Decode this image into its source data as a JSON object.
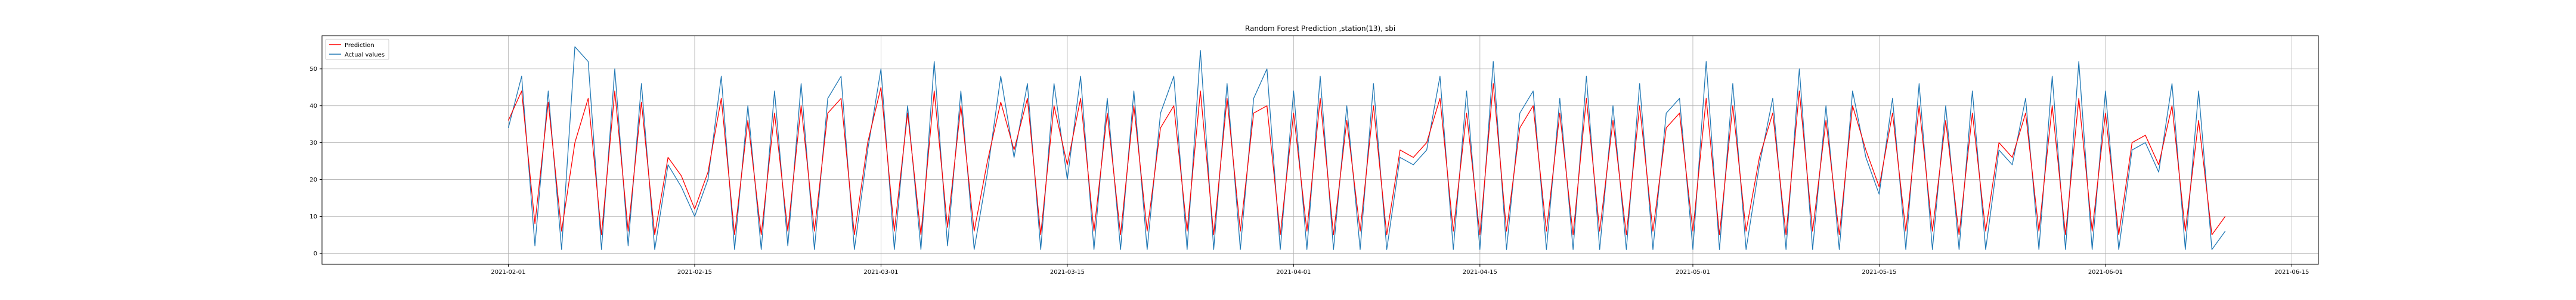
{
  "chart_data": {
    "type": "line",
    "title": "Random Forest Prediction ,station(13), sbi",
    "xlabel": "",
    "ylabel": "",
    "x_range": [
      "2021-01-18",
      "2021-06-17"
    ],
    "ylim": [
      -3,
      59
    ],
    "x_ticks": [
      "2021-02-01",
      "2021-02-15",
      "2021-03-01",
      "2021-03-15",
      "2021-04-01",
      "2021-04-15",
      "2021-05-01",
      "2021-05-15",
      "2021-06-01",
      "2021-06-15"
    ],
    "y_ticks": [
      0,
      10,
      20,
      30,
      40,
      50
    ],
    "grid": true,
    "legend": "top-left",
    "series": [
      {
        "name": "Prediction",
        "color": "#ff0000",
        "x": [
          "2021-02-01",
          "2021-02-02",
          "2021-02-03",
          "2021-02-04",
          "2021-02-05",
          "2021-02-06",
          "2021-02-07",
          "2021-02-08",
          "2021-02-09",
          "2021-02-10",
          "2021-02-11",
          "2021-02-12",
          "2021-02-13",
          "2021-02-14",
          "2021-02-15",
          "2021-02-16",
          "2021-02-17",
          "2021-02-18",
          "2021-02-19",
          "2021-02-20",
          "2021-02-21",
          "2021-02-22",
          "2021-02-23",
          "2021-02-24",
          "2021-02-25",
          "2021-02-26",
          "2021-02-27",
          "2021-02-28",
          "2021-03-01",
          "2021-03-02",
          "2021-03-03",
          "2021-03-04",
          "2021-03-05",
          "2021-03-06",
          "2021-03-07",
          "2021-03-08",
          "2021-03-09",
          "2021-03-10",
          "2021-03-11",
          "2021-03-12",
          "2021-03-13",
          "2021-03-14",
          "2021-03-15",
          "2021-03-16",
          "2021-03-17",
          "2021-03-18",
          "2021-03-19",
          "2021-03-20",
          "2021-03-21",
          "2021-03-22",
          "2021-03-23",
          "2021-03-24",
          "2021-03-25",
          "2021-03-26",
          "2021-03-27",
          "2021-03-28",
          "2021-03-29",
          "2021-03-30",
          "2021-03-31",
          "2021-04-01",
          "2021-04-02",
          "2021-04-03",
          "2021-04-04",
          "2021-04-05",
          "2021-04-06",
          "2021-04-07",
          "2021-04-08",
          "2021-04-09",
          "2021-04-10",
          "2021-04-11",
          "2021-04-12",
          "2021-04-13",
          "2021-04-14",
          "2021-04-15",
          "2021-04-16",
          "2021-04-17",
          "2021-04-18",
          "2021-04-19",
          "2021-04-20",
          "2021-04-21",
          "2021-04-22",
          "2021-04-23",
          "2021-04-24",
          "2021-04-25",
          "2021-04-26",
          "2021-04-27",
          "2021-04-28",
          "2021-04-29",
          "2021-04-30",
          "2021-05-01",
          "2021-05-02",
          "2021-05-03",
          "2021-05-04",
          "2021-05-05",
          "2021-05-06",
          "2021-05-07",
          "2021-05-08",
          "2021-05-09",
          "2021-05-10",
          "2021-05-11",
          "2021-05-12",
          "2021-05-13",
          "2021-05-14",
          "2021-05-15",
          "2021-05-16",
          "2021-05-17",
          "2021-05-18",
          "2021-05-19",
          "2021-05-20",
          "2021-05-21",
          "2021-05-22",
          "2021-05-23",
          "2021-05-24",
          "2021-05-25",
          "2021-05-26",
          "2021-05-27",
          "2021-05-28",
          "2021-05-29",
          "2021-05-30",
          "2021-05-31",
          "2021-06-01",
          "2021-06-02",
          "2021-06-03",
          "2021-06-04",
          "2021-06-05",
          "2021-06-06",
          "2021-06-07",
          "2021-06-08",
          "2021-06-09",
          "2021-06-10"
        ],
        "values": [
          36,
          44,
          8,
          41,
          6,
          30,
          42,
          5,
          44,
          6,
          41,
          5,
          26,
          21,
          12,
          22,
          42,
          5,
          36,
          5,
          38,
          6,
          40,
          6,
          38,
          42,
          5,
          30,
          45,
          6,
          38,
          5,
          44,
          7,
          40,
          6,
          25,
          41,
          28,
          42,
          5,
          40,
          24,
          42,
          6,
          38,
          5,
          40,
          6,
          34,
          40,
          6,
          44,
          5,
          42,
          6,
          38,
          40,
          5,
          38,
          6,
          42,
          5,
          36,
          6,
          40,
          5,
          28,
          26,
          30,
          42,
          6,
          38,
          5,
          46,
          6,
          34,
          40,
          6,
          38,
          5,
          42,
          6,
          36,
          5,
          40,
          6,
          34,
          38,
          6,
          42,
          5,
          40,
          6,
          26,
          38,
          5,
          44,
          6,
          36,
          5,
          40,
          28,
          18,
          38,
          6,
          40,
          6,
          36,
          5,
          38,
          6,
          30,
          26,
          38,
          6,
          40,
          5,
          42,
          6,
          38,
          5,
          30,
          32,
          24,
          40,
          6,
          36,
          5,
          10
        ]
      },
      {
        "name": "Actual values",
        "color": "#1f77b4",
        "x": [
          "2021-02-01",
          "2021-02-02",
          "2021-02-03",
          "2021-02-04",
          "2021-02-05",
          "2021-02-06",
          "2021-02-07",
          "2021-02-08",
          "2021-02-09",
          "2021-02-10",
          "2021-02-11",
          "2021-02-12",
          "2021-02-13",
          "2021-02-14",
          "2021-02-15",
          "2021-02-16",
          "2021-02-17",
          "2021-02-18",
          "2021-02-19",
          "2021-02-20",
          "2021-02-21",
          "2021-02-22",
          "2021-02-23",
          "2021-02-24",
          "2021-02-25",
          "2021-02-26",
          "2021-02-27",
          "2021-02-28",
          "2021-03-01",
          "2021-03-02",
          "2021-03-03",
          "2021-03-04",
          "2021-03-05",
          "2021-03-06",
          "2021-03-07",
          "2021-03-08",
          "2021-03-09",
          "2021-03-10",
          "2021-03-11",
          "2021-03-12",
          "2021-03-13",
          "2021-03-14",
          "2021-03-15",
          "2021-03-16",
          "2021-03-17",
          "2021-03-18",
          "2021-03-19",
          "2021-03-20",
          "2021-03-21",
          "2021-03-22",
          "2021-03-23",
          "2021-03-24",
          "2021-03-25",
          "2021-03-26",
          "2021-03-27",
          "2021-03-28",
          "2021-03-29",
          "2021-03-30",
          "2021-03-31",
          "2021-04-01",
          "2021-04-02",
          "2021-04-03",
          "2021-04-04",
          "2021-04-05",
          "2021-04-06",
          "2021-04-07",
          "2021-04-08",
          "2021-04-09",
          "2021-04-10",
          "2021-04-11",
          "2021-04-12",
          "2021-04-13",
          "2021-04-14",
          "2021-04-15",
          "2021-04-16",
          "2021-04-17",
          "2021-04-18",
          "2021-04-19",
          "2021-04-20",
          "2021-04-21",
          "2021-04-22",
          "2021-04-23",
          "2021-04-24",
          "2021-04-25",
          "2021-04-26",
          "2021-04-27",
          "2021-04-28",
          "2021-04-29",
          "2021-04-30",
          "2021-05-01",
          "2021-05-02",
          "2021-05-03",
          "2021-05-04",
          "2021-05-05",
          "2021-05-06",
          "2021-05-07",
          "2021-05-08",
          "2021-05-09",
          "2021-05-10",
          "2021-05-11",
          "2021-05-12",
          "2021-05-13",
          "2021-05-14",
          "2021-05-15",
          "2021-05-16",
          "2021-05-17",
          "2021-05-18",
          "2021-05-19",
          "2021-05-20",
          "2021-05-21",
          "2021-05-22",
          "2021-05-23",
          "2021-05-24",
          "2021-05-25",
          "2021-05-26",
          "2021-05-27",
          "2021-05-28",
          "2021-05-29",
          "2021-05-30",
          "2021-05-31",
          "2021-06-01",
          "2021-06-02",
          "2021-06-03",
          "2021-06-04",
          "2021-06-05",
          "2021-06-06",
          "2021-06-07",
          "2021-06-08",
          "2021-06-09",
          "2021-06-10"
        ],
        "values": [
          34,
          48,
          2,
          44,
          1,
          56,
          52,
          1,
          50,
          2,
          46,
          1,
          24,
          18,
          10,
          20,
          48,
          1,
          40,
          1,
          44,
          2,
          46,
          1,
          42,
          48,
          1,
          28,
          50,
          1,
          40,
          1,
          52,
          2,
          44,
          1,
          22,
          48,
          26,
          46,
          1,
          46,
          20,
          48,
          1,
          42,
          1,
          44,
          1,
          38,
          48,
          1,
          55,
          1,
          46,
          1,
          42,
          50,
          1,
          44,
          1,
          48,
          1,
          40,
          1,
          46,
          1,
          26,
          24,
          28,
          48,
          1,
          44,
          1,
          52,
          1,
          38,
          44,
          1,
          42,
          1,
          48,
          1,
          40,
          1,
          46,
          1,
          38,
          42,
          1,
          52,
          1,
          46,
          1,
          24,
          42,
          1,
          50,
          1,
          40,
          1,
          44,
          26,
          16,
          42,
          1,
          46,
          1,
          40,
          1,
          44,
          1,
          28,
          24,
          42,
          1,
          48,
          1,
          52,
          1,
          44,
          1,
          28,
          30,
          22,
          46,
          1,
          44,
          1,
          6
        ]
      }
    ]
  }
}
